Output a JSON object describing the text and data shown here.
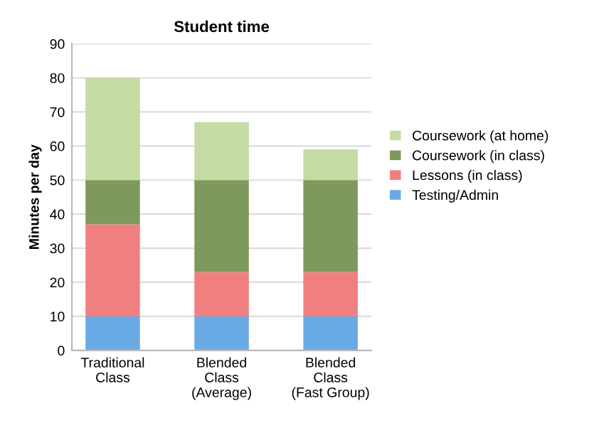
{
  "chart_data": {
    "type": "bar",
    "title": "Student time",
    "ylabel": "Minutes per day",
    "stacked": true,
    "categories": [
      "Traditional\nClass",
      "Blended\nClass\n(Average)",
      "Blended\nClass\n(Fast Group)"
    ],
    "series": [
      {
        "name": "Testing/Admin",
        "color": "#6aaae4",
        "values": [
          10,
          10,
          10
        ]
      },
      {
        "name": "Lessons (in class)",
        "color": "#f08080",
        "values": [
          27,
          13,
          13
        ]
      },
      {
        "name": "Coursework (in class)",
        "color": "#7d9a5c",
        "values": [
          13,
          27,
          27
        ]
      },
      {
        "name": "Coursework (at home)",
        "color": "#c6dba4",
        "values": [
          30,
          17,
          9
        ]
      }
    ],
    "ylim": [
      0,
      90
    ],
    "yticks": [
      0,
      10,
      20,
      30,
      40,
      50,
      60,
      70,
      80,
      90
    ],
    "grid": "y",
    "legend": "right"
  }
}
